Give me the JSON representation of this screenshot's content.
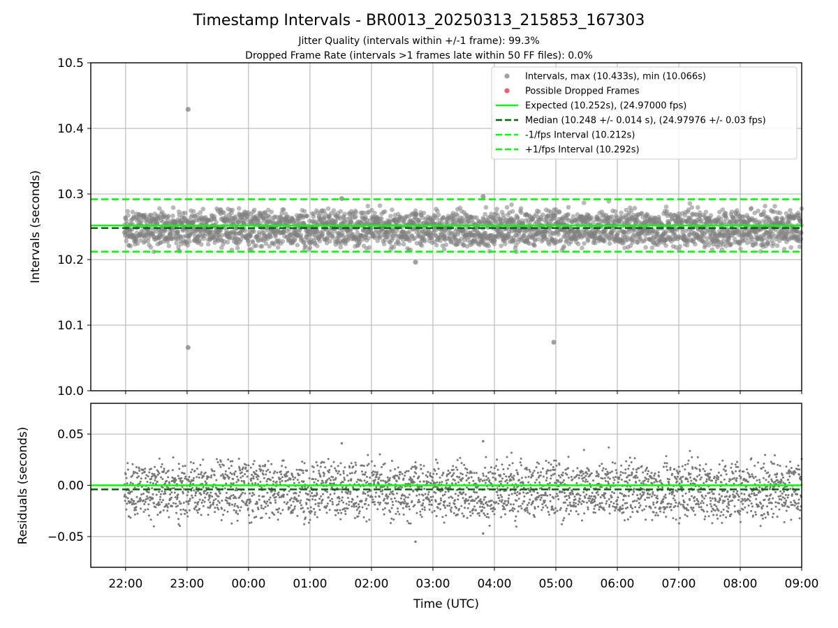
{
  "chart_data": {
    "type": "scatter",
    "title": "Timestamp Intervals - BR0013_20250313_215853_167303",
    "subtitle_lines": [
      "Jitter Quality (intervals within +/-1 frame): 99.3%",
      "Dropped Frame Rate (intervals >1 frames late within 50 FF files): 0.0%"
    ],
    "xlabel": "Time (UTC)",
    "x_range": [
      "21:26",
      "09:00"
    ],
    "x_ticks": [
      "22:00",
      "23:00",
      "00:00",
      "01:00",
      "02:00",
      "03:00",
      "04:00",
      "05:00",
      "06:00",
      "07:00",
      "08:00",
      "09:00"
    ],
    "data_start": "21:58:53",
    "grid": true,
    "colors": {
      "points": "#808080",
      "dropped": "#ff4d4d",
      "expected": "#00ff00",
      "median": "#006400",
      "interval": "#00ff00",
      "grid": "#b0b0b0"
    },
    "top_panel": {
      "ylabel": "Intervals (seconds)",
      "ylim": [
        10.0,
        10.5
      ],
      "y_ticks": [
        "10.0",
        "10.1",
        "10.2",
        "10.3",
        "10.4",
        "10.5"
      ],
      "legend_placement": "top-right",
      "legend": [
        {
          "label": "Intervals, max (10.433s), min (10.066s)",
          "kind": "marker",
          "color": "#a0a0a0"
        },
        {
          "label": "Possible Dropped Frames",
          "kind": "marker",
          "color": "#f06060"
        },
        {
          "label": "Expected (10.252s), (24.97000 fps)",
          "kind": "solid",
          "color": "#00ff00"
        },
        {
          "label": "Median (10.248 +/- 0.014 s), (24.97976 +/- 0.03 fps)",
          "kind": "dashed",
          "color": "#006400"
        },
        {
          "label": "-1/fps Interval (10.212s)",
          "kind": "dashed",
          "color": "#00ff00"
        },
        {
          "label": "+1/fps Interval (10.292s)",
          "kind": "dashed",
          "color": "#00ff00"
        }
      ],
      "expected": 10.252,
      "median": 10.248,
      "minus_interval": 10.212,
      "plus_interval": 10.292,
      "max": 10.433,
      "min": 10.066,
      "outliers": [
        {
          "t": "23:01",
          "value": 10.429
        },
        {
          "t": "23:01",
          "value": 10.066
        },
        {
          "t": "04:58",
          "value": 10.074
        },
        {
          "t": "02:43",
          "value": 10.196
        },
        {
          "t": "03:49",
          "value": 10.296
        },
        {
          "t": "01:31",
          "value": 10.293
        }
      ],
      "point_count": 3000,
      "typical_range": [
        10.21,
        10.29
      ]
    },
    "bottom_panel": {
      "ylabel": "Residuals (seconds)",
      "ylim": [
        -0.08,
        0.08
      ],
      "y_ticks": [
        "−0.05",
        "0.00",
        "0.05"
      ],
      "expected": 0.0,
      "median": -0.004,
      "outliers": [
        {
          "t": "01:31",
          "value": 0.041
        },
        {
          "t": "03:49",
          "value": 0.043
        },
        {
          "t": "02:43",
          "value": -0.055
        },
        {
          "t": "03:49",
          "value": -0.047
        }
      ]
    }
  }
}
